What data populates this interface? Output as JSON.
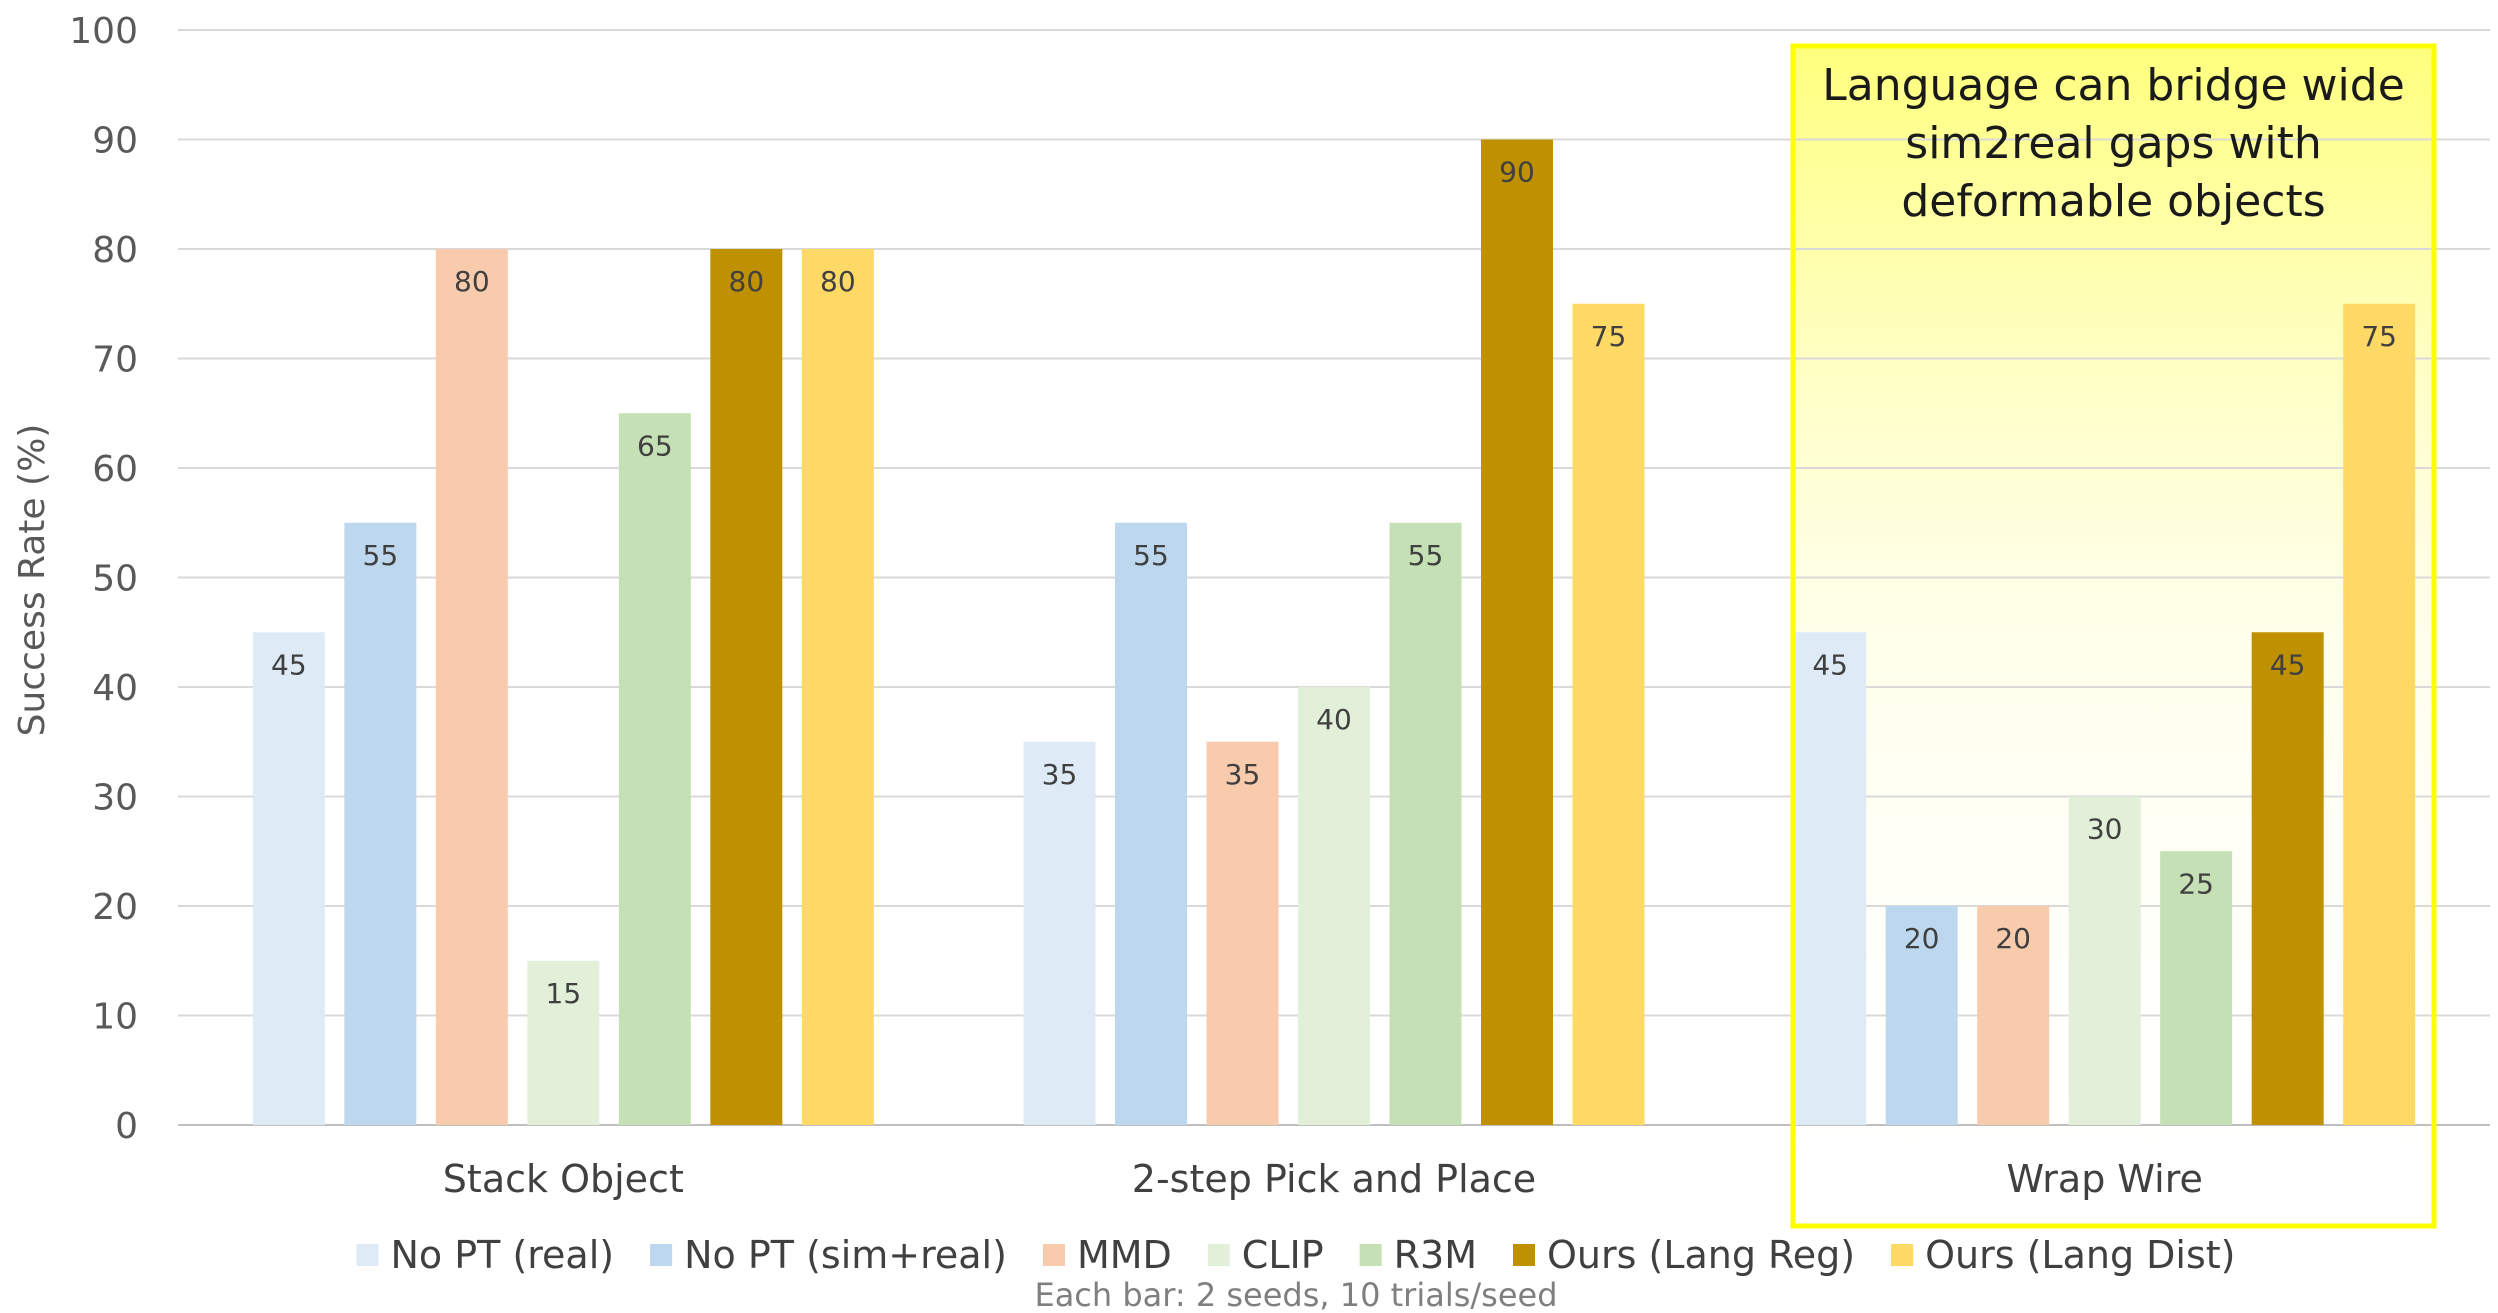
{
  "chart_data": {
    "type": "bar",
    "categories": [
      "Stack Object",
      "2-step Pick and Place",
      "Wrap Wire"
    ],
    "series": [
      {
        "name": "No PT (real)",
        "values": [
          45,
          35,
          45
        ],
        "color": "#DEEBF7"
      },
      {
        "name": "No PT (sim+real)",
        "values": [
          55,
          55,
          20
        ],
        "color": "#BDD7EE"
      },
      {
        "name": "MMD",
        "values": [
          80,
          35,
          20
        ],
        "color": "#F8CBAD"
      },
      {
        "name": "CLIP",
        "values": [
          15,
          40,
          30
        ],
        "color": "#E2F0D9"
      },
      {
        "name": "R3M",
        "values": [
          65,
          55,
          25
        ],
        "color": "#C5E0B4"
      },
      {
        "name": "Ours (Lang Reg)",
        "values": [
          80,
          90,
          45
        ],
        "color": "#BF9000"
      },
      {
        "name": "Ours (Lang Dist)",
        "values": [
          80,
          75,
          75
        ],
        "color": "#FFD966"
      }
    ],
    "ylabel": "Success Rate (%)",
    "xlabel": "",
    "ylim": [
      0,
      100
    ],
    "yticks": [
      0,
      10,
      20,
      30,
      40,
      50,
      60,
      70,
      80,
      90,
      100
    ],
    "grid": true,
    "legend_position": "bottom",
    "note": "Each bar: 2 seeds, 10 trials/seed",
    "callout": {
      "lines": [
        "Language can bridge wide",
        "sim2real gaps with",
        "deformable objects"
      ],
      "target_category": "Wrap Wire",
      "border_color": "#FFFF00"
    }
  }
}
